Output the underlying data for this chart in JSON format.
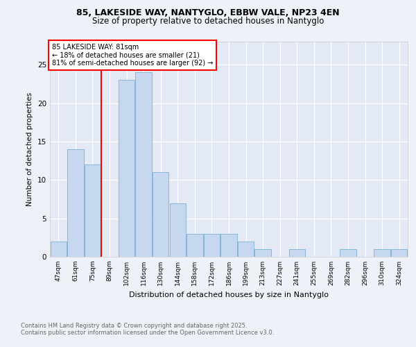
{
  "title1": "85, LAKESIDE WAY, NANTYGLO, EBBW VALE, NP23 4EN",
  "title2": "Size of property relative to detached houses in Nantyglo",
  "xlabel": "Distribution of detached houses by size in Nantyglo",
  "ylabel": "Number of detached properties",
  "categories": [
    "47sqm",
    "61sqm",
    "75sqm",
    "89sqm",
    "102sqm",
    "116sqm",
    "130sqm",
    "144sqm",
    "158sqm",
    "172sqm",
    "186sqm",
    "199sqm",
    "213sqm",
    "227sqm",
    "241sqm",
    "255sqm",
    "269sqm",
    "282sqm",
    "296sqm",
    "310sqm",
    "324sqm"
  ],
  "values": [
    2,
    14,
    12,
    0,
    23,
    24,
    11,
    7,
    3,
    3,
    3,
    2,
    1,
    0,
    1,
    0,
    0,
    1,
    0,
    1,
    1
  ],
  "bar_color": "#c5d8f0",
  "bar_edge_color": "#7bafd4",
  "redline_x": 2.5,
  "annotation_text": "85 LAKESIDE WAY: 81sqm\n← 18% of detached houses are smaller (21)\n81% of semi-detached houses are larger (92) →",
  "footnote1": "Contains HM Land Registry data © Crown copyright and database right 2025.",
  "footnote2": "Contains public sector information licensed under the Open Government Licence v3.0.",
  "ylim": [
    0,
    28
  ],
  "yticks": [
    0,
    5,
    10,
    15,
    20,
    25
  ],
  "bg_color": "#eef2f8",
  "plot_bg_color": "#e4eaf5"
}
